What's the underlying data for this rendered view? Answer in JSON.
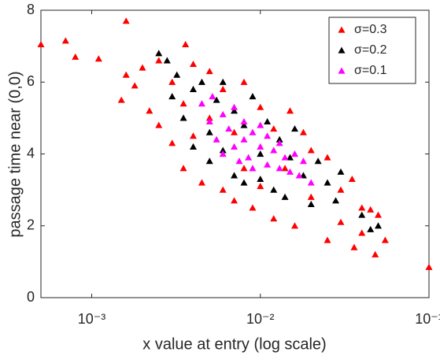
{
  "chart_data": {
    "type": "scatter",
    "x_label": "x value at entry (log scale)",
    "y_label": "passage time near (0,0)",
    "xscale": "log",
    "xlim": [
      0.0005,
      0.1
    ],
    "ylim": [
      0,
      8
    ],
    "xticks": [
      {
        "value": 0.001,
        "label": "10⁻³"
      },
      {
        "value": 0.01,
        "label": "10⁻²"
      },
      {
        "value": 0.1,
        "label": "10⁻¹"
      }
    ],
    "yticks": [
      0,
      2,
      4,
      6,
      8
    ],
    "legend": "upper right",
    "series": [
      {
        "name": "σ=0.3",
        "color": "#ff0000",
        "x": [
          0.0005,
          0.0007,
          0.0008,
          0.0011,
          0.0016,
          0.0036,
          0.1,
          0.055,
          0.048,
          0.05,
          0.045,
          0.036,
          0.0015,
          0.0016,
          0.0018,
          0.002,
          0.0022,
          0.0025,
          0.0025,
          0.003,
          0.003,
          0.0035,
          0.0035,
          0.004,
          0.004,
          0.0045,
          0.005,
          0.005,
          0.006,
          0.006,
          0.007,
          0.007,
          0.008,
          0.008,
          0.009,
          0.01,
          0.01,
          0.012,
          0.012,
          0.014,
          0.015,
          0.016,
          0.018,
          0.02,
          0.02,
          0.025,
          0.025,
          0.03,
          0.03,
          0.035,
          0.04,
          0.04
        ],
        "values": [
          7.05,
          7.15,
          6.7,
          6.65,
          7.7,
          7.05,
          0.85,
          1.6,
          1.2,
          2.3,
          2.45,
          1.4,
          5.5,
          6.2,
          5.9,
          6.4,
          5.2,
          6.6,
          4.8,
          6.0,
          4.3,
          5.4,
          3.6,
          6.5,
          4.5,
          3.2,
          6.3,
          5.0,
          3.0,
          5.8,
          2.7,
          4.6,
          6.0,
          3.6,
          2.5,
          5.3,
          3.1,
          2.2,
          4.7,
          3.6,
          5.2,
          2.0,
          4.6,
          2.8,
          4.1,
          1.6,
          3.9,
          3.0,
          2.1,
          3.3,
          2.5,
          1.8
        ]
      },
      {
        "name": "σ=0.2",
        "color": "#000000",
        "x": [
          0.0025,
          0.0028,
          0.003,
          0.0032,
          0.0035,
          0.004,
          0.004,
          0.0045,
          0.005,
          0.005,
          0.0055,
          0.006,
          0.006,
          0.007,
          0.007,
          0.008,
          0.008,
          0.009,
          0.01,
          0.01,
          0.011,
          0.012,
          0.013,
          0.014,
          0.015,
          0.016,
          0.018,
          0.02,
          0.022,
          0.025,
          0.028,
          0.03,
          0.04,
          0.045,
          0.05
        ],
        "values": [
          6.8,
          6.6,
          5.6,
          6.2,
          5.0,
          5.8,
          4.2,
          6.0,
          4.6,
          3.8,
          5.5,
          4.1,
          6.0,
          5.2,
          3.4,
          4.8,
          3.2,
          5.6,
          4.0,
          3.3,
          4.9,
          3.0,
          4.4,
          2.8,
          3.9,
          4.7,
          3.4,
          2.6,
          3.8,
          3.2,
          2.7,
          3.5,
          2.3,
          1.9,
          2.0
        ]
      },
      {
        "name": "σ=0.1",
        "color": "#ff00ff",
        "x": [
          0.0045,
          0.005,
          0.0052,
          0.0055,
          0.006,
          0.006,
          0.0065,
          0.007,
          0.007,
          0.0075,
          0.008,
          0.008,
          0.0085,
          0.009,
          0.009,
          0.01,
          0.01,
          0.011,
          0.011,
          0.012,
          0.013,
          0.013,
          0.014,
          0.015,
          0.016,
          0.017,
          0.018,
          0.02
        ],
        "values": [
          5.4,
          4.9,
          5.6,
          4.4,
          5.1,
          4.0,
          4.7,
          5.3,
          4.2,
          3.8,
          4.9,
          4.4,
          3.9,
          4.6,
          3.6,
          4.2,
          4.8,
          3.7,
          4.5,
          4.1,
          3.6,
          4.3,
          3.9,
          3.5,
          4.0,
          3.4,
          3.8,
          3.2
        ]
      }
    ]
  }
}
